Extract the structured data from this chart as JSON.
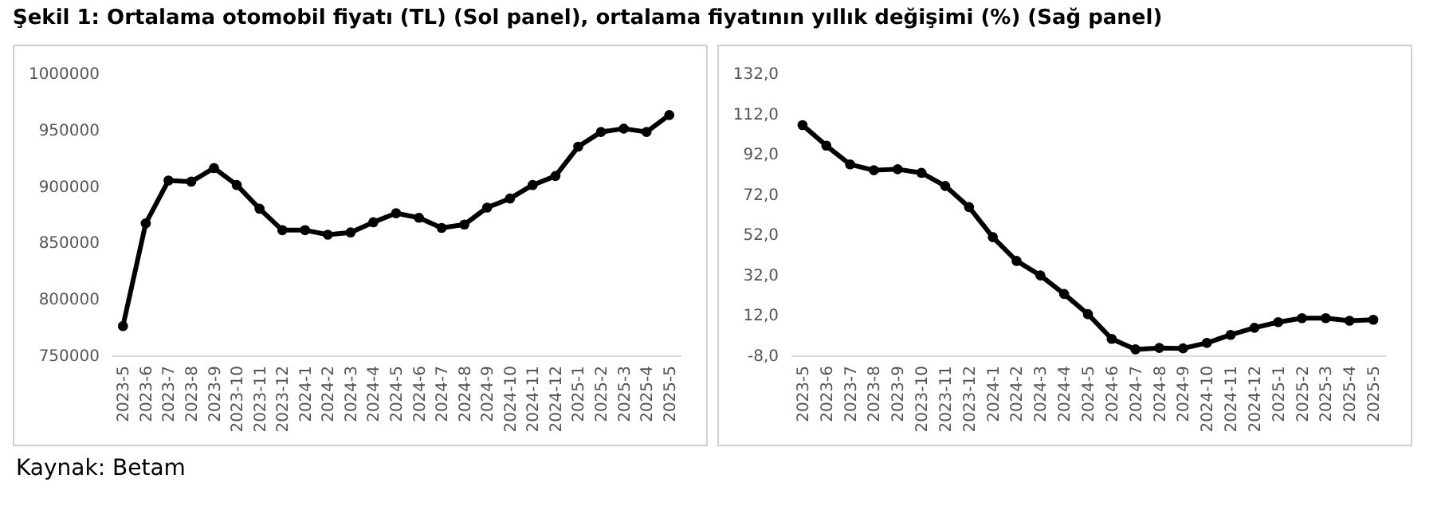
{
  "chart_data": [
    {
      "type": "line",
      "title": "Şekil 1: Ortalama otomobil fiyatı (TL) (Sol panel), ortalama fiyatının yıllık değişimi (%) (Sağ panel)",
      "annotations": [
        "Kaynak: Betam"
      ],
      "categories": [
        "2023-5",
        "2023-6",
        "2023-7",
        "2023-8",
        "2023-9",
        "2023-10",
        "2023-11",
        "2023-12",
        "2024-1",
        "2024-2",
        "2024-3",
        "2024-4",
        "2024-5",
        "2024-6",
        "2024-7",
        "2024-8",
        "2024-9",
        "2024-10",
        "2024-11",
        "2024-12",
        "2025-1",
        "2025-2",
        "2025-3",
        "2025-4",
        "2025-5"
      ],
      "series": [
        {
          "color": "#000000",
          "values": [
            776000,
            867000,
            905000,
            904000,
            916000,
            901000,
            880000,
            861000,
            861000,
            857000,
            859000,
            868000,
            876000,
            872000,
            863000,
            866000,
            881000,
            889000,
            901000,
            909000,
            935000,
            948000,
            951000,
            948000,
            963000
          ]
        }
      ],
      "ylim": [
        750000,
        1000000
      ],
      "yticks": [
        750000,
        800000,
        850000,
        900000,
        950000,
        1000000
      ],
      "marker": "circle",
      "line_style": "solid"
    },
    {
      "type": "line",
      "categories": [
        "2023-5",
        "2023-6",
        "2023-7",
        "2023-8",
        "2023-9",
        "2023-10",
        "2023-11",
        "2023-12",
        "2024-1",
        "2024-2",
        "2024-3",
        "2024-4",
        "2024-5",
        "2024-6",
        "2024-7",
        "2024-8",
        "2024-9",
        "2024-10",
        "2024-11",
        "2024-12",
        "2025-1",
        "2025-2",
        "2025-3",
        "2025-4",
        "2025-5"
      ],
      "series": [
        {
          "color": "#000000",
          "values": [
            106.3,
            96.1,
            86.8,
            83.9,
            84.4,
            82.6,
            76.1,
            65.6,
            50.7,
            38.9,
            31.7,
            22.5,
            12.5,
            0.2,
            -5.0,
            -4.3,
            -4.5,
            -1.8,
            2.2,
            5.7,
            8.5,
            10.5,
            10.5,
            9.2,
            9.7
          ]
        }
      ],
      "ylim": [
        -8,
        132
      ],
      "yticks": [
        {
          "value": -8,
          "label": "-8,0"
        },
        {
          "value": 12,
          "label": "12,0"
        },
        {
          "value": 32,
          "label": "32,0"
        },
        {
          "value": 52,
          "label": "52,0"
        },
        {
          "value": 72,
          "label": "72,0"
        },
        {
          "value": 92,
          "label": "92,0"
        },
        {
          "value": 112,
          "label": "112,0"
        },
        {
          "value": 132,
          "label": "132,0"
        }
      ],
      "marker": "circle",
      "line_style": "solid"
    }
  ]
}
